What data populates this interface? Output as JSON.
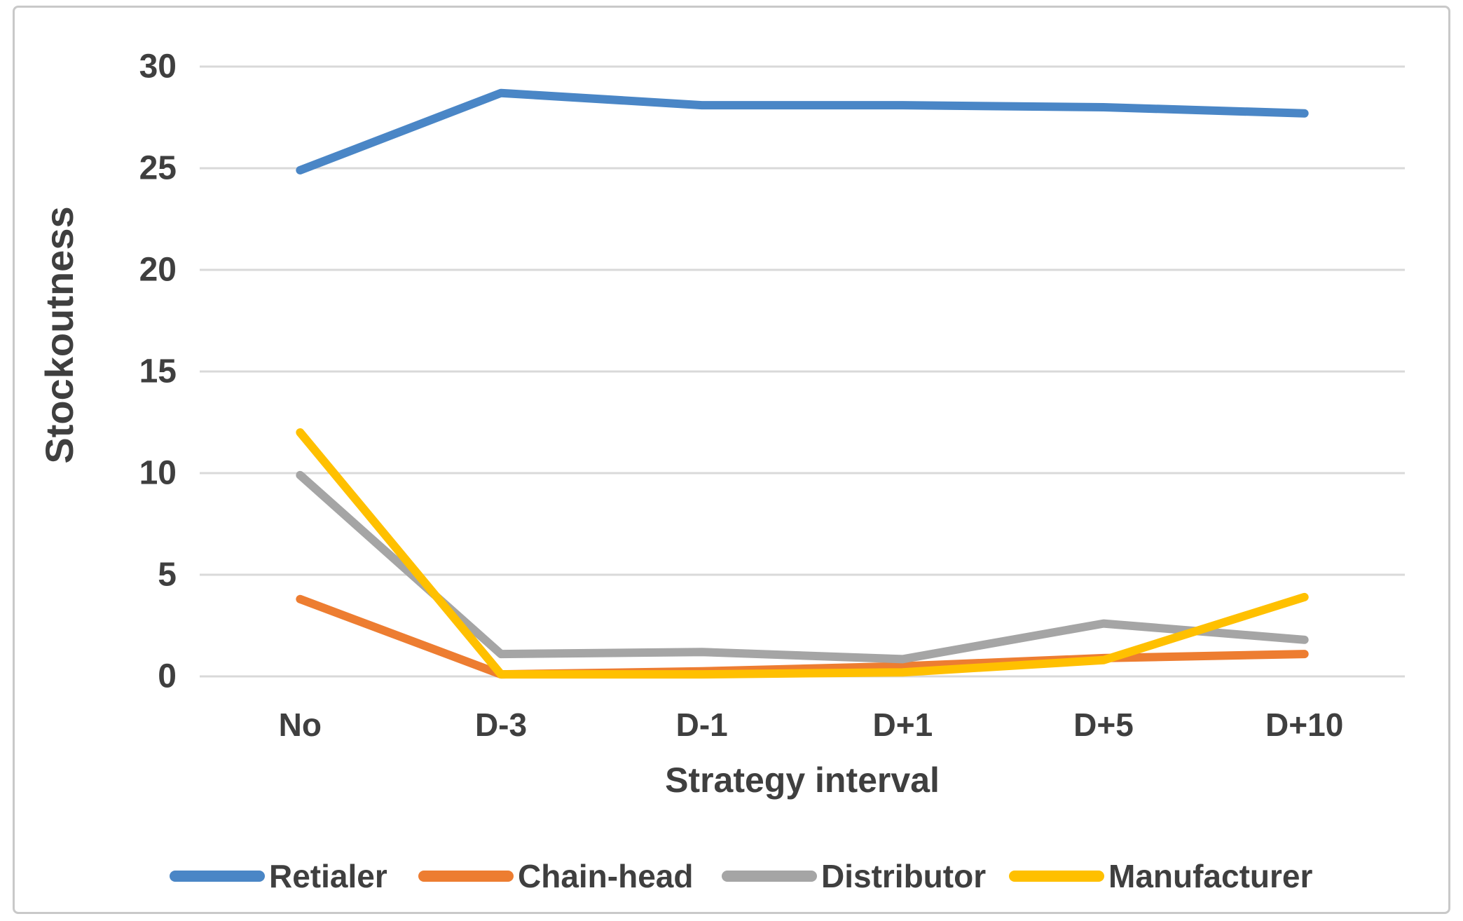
{
  "chart_data": {
    "type": "line",
    "categories": [
      "No",
      "D-3",
      "D-1",
      "D+1",
      "D+5",
      "D+10"
    ],
    "series": [
      {
        "name": "Retialer",
        "color": "#4A86C6",
        "values": [
          24.9,
          28.7,
          28.1,
          28.1,
          28.0,
          27.7
        ]
      },
      {
        "name": "Chain-head",
        "color": "#ED7D31",
        "values": [
          3.8,
          0.1,
          0.25,
          0.5,
          0.9,
          1.1
        ]
      },
      {
        "name": "Distributor",
        "color": "#A5A5A5",
        "values": [
          9.9,
          1.1,
          1.2,
          0.85,
          2.6,
          1.8
        ]
      },
      {
        "name": "Manufacturer",
        "color": "#FFC000",
        "values": [
          12.0,
          0.1,
          0.1,
          0.2,
          0.8,
          3.9
        ]
      }
    ],
    "title": "",
    "xlabel": "Strategy interval",
    "ylabel": "Stockoutness",
    "ylim": [
      0,
      30
    ],
    "yticks": [
      0,
      5,
      10,
      15,
      20,
      25,
      30
    ],
    "grid": true,
    "legend_position": "bottom"
  }
}
